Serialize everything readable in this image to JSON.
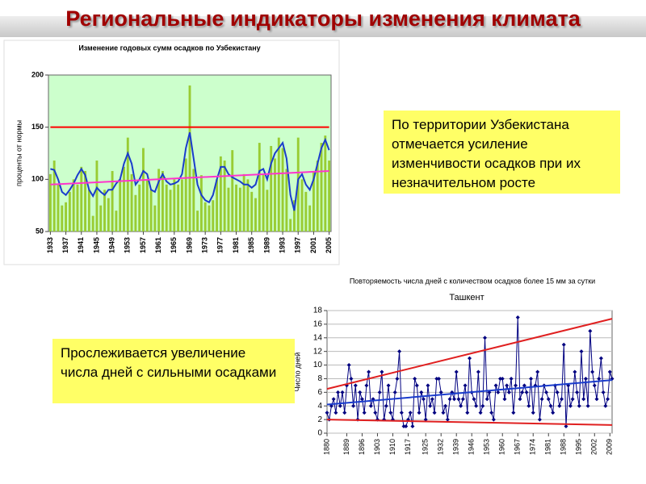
{
  "slide_title": "Региональные индикаторы изменения климата",
  "text_boxes": [
    "По территории Узбекистана отмечается усиление изменчивости осадков при их незначительном росте",
    "Прослеживается увеличение числа дней с сильными осадками"
  ],
  "chart_data": [
    {
      "type": "bar",
      "title": "Изменение годовых сумм осадков по Узбекистану",
      "ylabel": "проценты от нормы",
      "x": [
        1933,
        1934,
        1935,
        1936,
        1937,
        1938,
        1939,
        1940,
        1941,
        1942,
        1943,
        1944,
        1945,
        1946,
        1947,
        1948,
        1949,
        1950,
        1951,
        1952,
        1953,
        1954,
        1955,
        1956,
        1957,
        1958,
        1959,
        1960,
        1961,
        1962,
        1963,
        1964,
        1965,
        1966,
        1967,
        1968,
        1969,
        1970,
        1971,
        1972,
        1973,
        1974,
        1975,
        1976,
        1977,
        1978,
        1979,
        1980,
        1981,
        1982,
        1983,
        1984,
        1985,
        1986,
        1987,
        1988,
        1989,
        1990,
        1991,
        1992,
        1993,
        1994,
        1995,
        1996,
        1997,
        1998,
        1999,
        2000,
        2001,
        2002,
        2003,
        2004,
        2005
      ],
      "values": [
        105,
        118,
        95,
        75,
        78,
        88,
        100,
        95,
        112,
        108,
        90,
        65,
        118,
        75,
        90,
        82,
        108,
        70,
        100,
        112,
        140,
        105,
        85,
        95,
        130,
        100,
        90,
        75,
        110,
        108,
        95,
        90,
        100,
        95,
        100,
        120,
        190,
        110,
        70,
        104,
        78,
        75,
        80,
        100,
        122,
        118,
        92,
        128,
        95,
        92,
        105,
        100,
        88,
        82,
        135,
        105,
        90,
        132,
        120,
        140,
        130,
        110,
        62,
        80,
        140,
        100,
        88,
        75,
        108,
        118,
        135,
        142,
        118
      ],
      "color": "#99cc33",
      "background": "#ccffcc",
      "series": [
        {
          "color": "#1a3ccc",
          "values": [
            110,
            109,
            100,
            88,
            85,
            90,
            96,
            104,
            110,
            104,
            90,
            84,
            92,
            88,
            85,
            90,
            90,
            96,
            100,
            115,
            125,
            115,
            95,
            100,
            108,
            105,
            90,
            88,
            98,
            105,
            98,
            95,
            96,
            98,
            105,
            130,
            145,
            120,
            95,
            85,
            80,
            78,
            85,
            100,
            112,
            112,
            105,
            102,
            100,
            98,
            95,
            95,
            92,
            95,
            108,
            110,
            100,
            115,
            125,
            130,
            135,
            120,
            85,
            70,
            100,
            105,
            95,
            90,
            100,
            115,
            130,
            138,
            128
          ]
        },
        {
          "color": "#ff33cc",
          "x": [
            1933,
            2005
          ],
          "values": [
            95,
            108
          ]
        },
        {
          "color": "#ff0000",
          "x": [
            1933,
            2005
          ],
          "values": [
            150,
            150
          ]
        }
      ],
      "xlim": [
        1932.5,
        2005.5
      ],
      "xticks": [
        1933,
        1937,
        1941,
        1945,
        1949,
        1953,
        1957,
        1961,
        1965,
        1969,
        1973,
        1977,
        1981,
        1985,
        1989,
        1993,
        1997,
        2001,
        2005
      ],
      "ylim": [
        50,
        200
      ],
      "yticks": [
        50,
        100,
        150,
        200
      ],
      "grid": false
    },
    {
      "type": "line",
      "title": "Повторяемость числа дней с количеством осадков более 15 мм за сутки",
      "subtitle": "Ташкент",
      "ylabel": "Число дней",
      "x": [
        1880,
        1881,
        1882,
        1883,
        1884,
        1885,
        1886,
        1887,
        1888,
        1889,
        1890,
        1891,
        1892,
        1893,
        1894,
        1895,
        1896,
        1897,
        1898,
        1899,
        1900,
        1901,
        1902,
        1903,
        1904,
        1905,
        1906,
        1907,
        1908,
        1909,
        1910,
        1911,
        1912,
        1913,
        1914,
        1915,
        1916,
        1917,
        1918,
        1919,
        1920,
        1921,
        1922,
        1923,
        1924,
        1925,
        1926,
        1927,
        1928,
        1929,
        1930,
        1931,
        1932,
        1933,
        1934,
        1935,
        1936,
        1937,
        1938,
        1939,
        1940,
        1941,
        1942,
        1943,
        1944,
        1945,
        1946,
        1947,
        1948,
        1949,
        1950,
        1951,
        1952,
        1953,
        1954,
        1955,
        1956,
        1957,
        1958,
        1959,
        1960,
        1961,
        1962,
        1963,
        1964,
        1965,
        1966,
        1967,
        1968,
        1969,
        1970,
        1971,
        1972,
        1973,
        1974,
        1975,
        1976,
        1977,
        1978,
        1979,
        1980,
        1981,
        1982,
        1983,
        1984,
        1985,
        1986,
        1987,
        1988,
        1989,
        1990,
        1991,
        1992,
        1993,
        1994,
        1995,
        1996,
        1997,
        1998,
        1999,
        2000,
        2001,
        2002,
        2003,
        2004,
        2005,
        2006,
        2007,
        2008,
        2009,
        2010
      ],
      "values": [
        3,
        2,
        4,
        5,
        3,
        6,
        4,
        6,
        3,
        7,
        10,
        8,
        4,
        7,
        2,
        6,
        5,
        3,
        7,
        9,
        4,
        5,
        3,
        2,
        6,
        9,
        2,
        4,
        7,
        3,
        2,
        6,
        8,
        12,
        3,
        1,
        1,
        2,
        3,
        1,
        8,
        7,
        3,
        6,
        5,
        2,
        7,
        4,
        5,
        3,
        8,
        8,
        6,
        3,
        4,
        2,
        5,
        6,
        5,
        9,
        5,
        4,
        5,
        7,
        3,
        11,
        6,
        5,
        4,
        9,
        3,
        4,
        14,
        5,
        6,
        3,
        2,
        7,
        6,
        8,
        8,
        5,
        7,
        6,
        8,
        3,
        7,
        17,
        5,
        6,
        7,
        6,
        4,
        8,
        3,
        7,
        9,
        2,
        5,
        7,
        6,
        5,
        4,
        3,
        7,
        6,
        4,
        5,
        13,
        1,
        7,
        4,
        5,
        9,
        6,
        4,
        12,
        5,
        8,
        4,
        15,
        9,
        7,
        5,
        8,
        11,
        6,
        4,
        5,
        9,
        8
      ],
      "color": "#000080",
      "background": "#ffffff",
      "series": [
        {
          "color": "#1a3ccc",
          "x": [
            1880,
            2010
          ],
          "values": [
            4.2,
            7.8
          ]
        },
        {
          "color": "#e02020",
          "x": [
            1880,
            2010
          ],
          "values": [
            6.5,
            16.8
          ]
        },
        {
          "color": "#e02020",
          "x": [
            1880,
            2010
          ],
          "values": [
            2,
            1.2
          ]
        }
      ],
      "xlim": [
        1880,
        2010
      ],
      "xticks": [
        1880,
        1889,
        1896,
        1903,
        1910,
        1917,
        1925,
        1932,
        1939,
        1946,
        1953,
        1960,
        1967,
        1974,
        1981,
        1988,
        1995,
        2002,
        2009
      ],
      "ylim": [
        0,
        18
      ],
      "yticks": [
        0,
        2,
        4,
        6,
        8,
        10,
        12,
        14,
        16,
        18
      ],
      "grid": true
    }
  ]
}
